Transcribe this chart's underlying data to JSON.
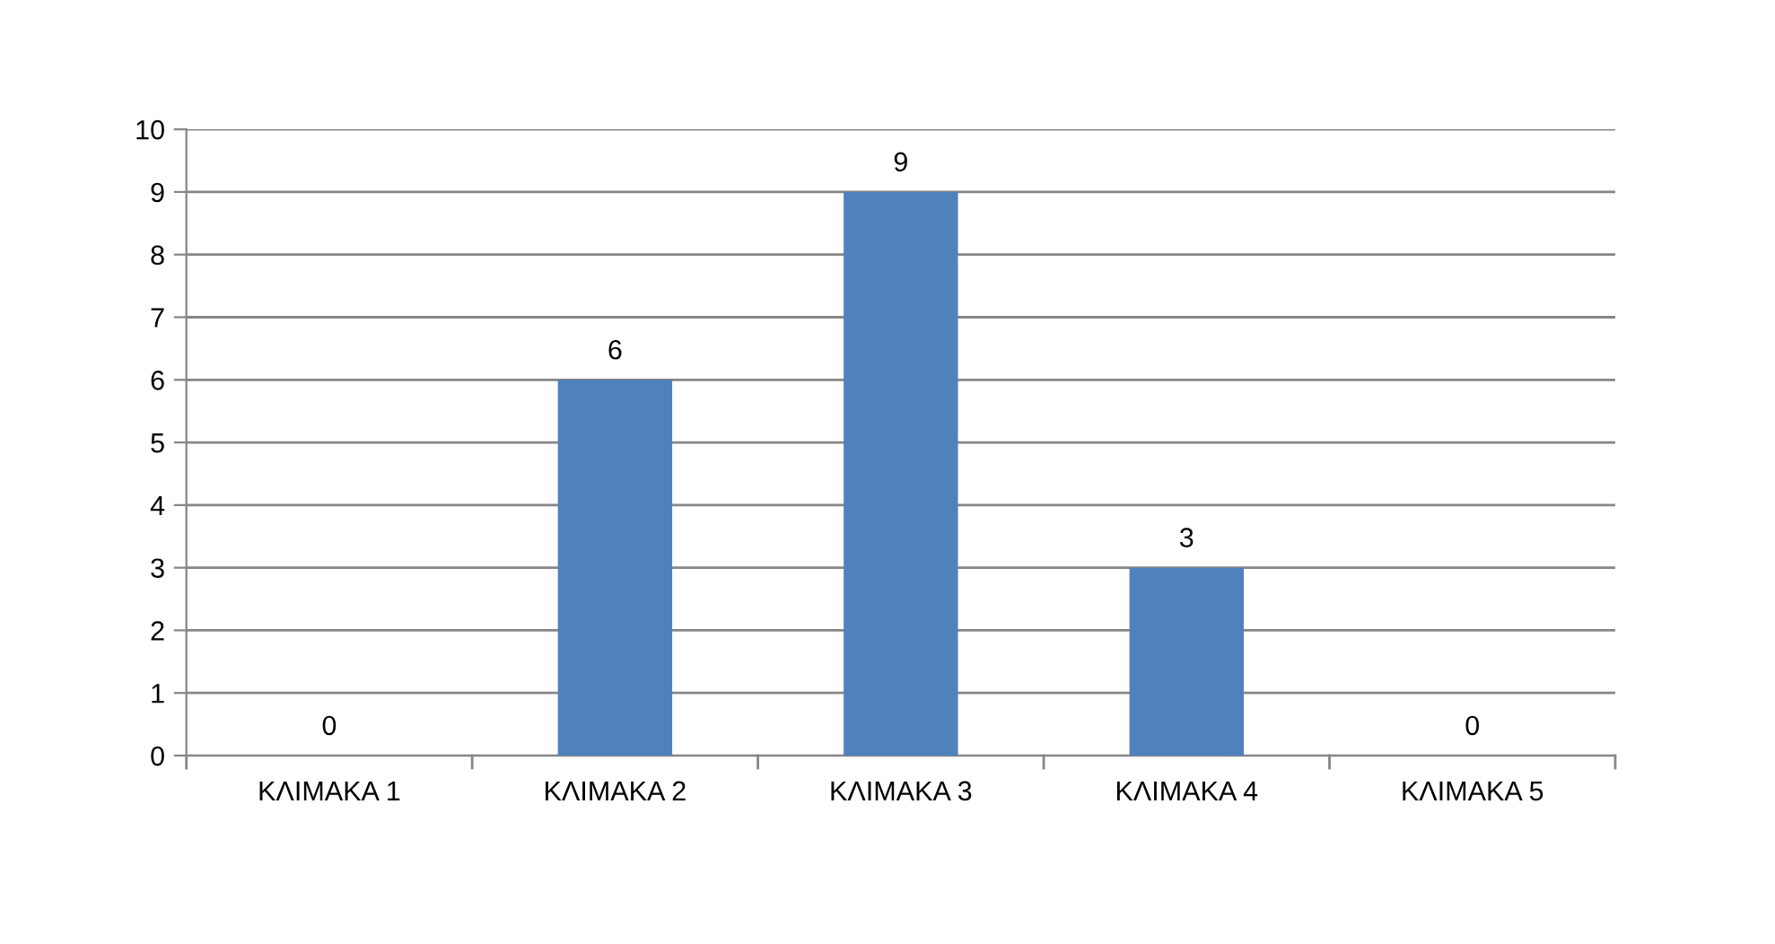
{
  "chart_data": {
    "type": "bar",
    "categories": [
      "ΚΛΙΜΑΚΑ 1",
      "ΚΛΙΜΑΚΑ 2",
      "ΚΛΙΜΑΚΑ 3",
      "ΚΛΙΜΑΚΑ 4",
      "ΚΛΙΜΑΚΑ 5"
    ],
    "values": [
      0,
      6,
      9,
      3,
      0
    ],
    "color": "#4f81bd",
    "ylim": [
      0,
      10
    ],
    "yticks": [
      0,
      1,
      2,
      3,
      4,
      5,
      6,
      7,
      8,
      9,
      10
    ],
    "grid": "y",
    "data_labels": true,
    "legend": false
  }
}
